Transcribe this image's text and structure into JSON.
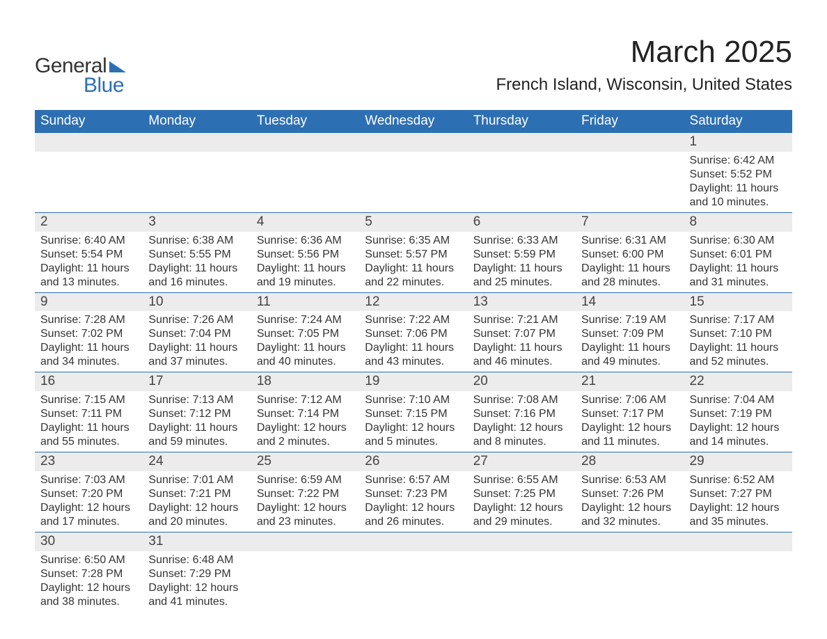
{
  "logo": {
    "text_general": "General",
    "text_blue": "Blue",
    "triangle_color": "#2d6fb3"
  },
  "title": "March 2025",
  "location": "French Island, Wisconsin, United States",
  "colors": {
    "header_bg": "#2d6fb3",
    "header_text": "#ffffff",
    "daynum_bg": "#ececec",
    "text": "#333333",
    "row_border": "#2d6fb3",
    "page_bg": "#ffffff"
  },
  "day_headers": [
    "Sunday",
    "Monday",
    "Tuesday",
    "Wednesday",
    "Thursday",
    "Friday",
    "Saturday"
  ],
  "weeks": [
    [
      null,
      null,
      null,
      null,
      null,
      null,
      {
        "n": "1",
        "sunrise": "6:42 AM",
        "sunset": "5:52 PM",
        "daylight": "11 hours and 10 minutes."
      }
    ],
    [
      {
        "n": "2",
        "sunrise": "6:40 AM",
        "sunset": "5:54 PM",
        "daylight": "11 hours and 13 minutes."
      },
      {
        "n": "3",
        "sunrise": "6:38 AM",
        "sunset": "5:55 PM",
        "daylight": "11 hours and 16 minutes."
      },
      {
        "n": "4",
        "sunrise": "6:36 AM",
        "sunset": "5:56 PM",
        "daylight": "11 hours and 19 minutes."
      },
      {
        "n": "5",
        "sunrise": "6:35 AM",
        "sunset": "5:57 PM",
        "daylight": "11 hours and 22 minutes."
      },
      {
        "n": "6",
        "sunrise": "6:33 AM",
        "sunset": "5:59 PM",
        "daylight": "11 hours and 25 minutes."
      },
      {
        "n": "7",
        "sunrise": "6:31 AM",
        "sunset": "6:00 PM",
        "daylight": "11 hours and 28 minutes."
      },
      {
        "n": "8",
        "sunrise": "6:30 AM",
        "sunset": "6:01 PM",
        "daylight": "11 hours and 31 minutes."
      }
    ],
    [
      {
        "n": "9",
        "sunrise": "7:28 AM",
        "sunset": "7:02 PM",
        "daylight": "11 hours and 34 minutes."
      },
      {
        "n": "10",
        "sunrise": "7:26 AM",
        "sunset": "7:04 PM",
        "daylight": "11 hours and 37 minutes."
      },
      {
        "n": "11",
        "sunrise": "7:24 AM",
        "sunset": "7:05 PM",
        "daylight": "11 hours and 40 minutes."
      },
      {
        "n": "12",
        "sunrise": "7:22 AM",
        "sunset": "7:06 PM",
        "daylight": "11 hours and 43 minutes."
      },
      {
        "n": "13",
        "sunrise": "7:21 AM",
        "sunset": "7:07 PM",
        "daylight": "11 hours and 46 minutes."
      },
      {
        "n": "14",
        "sunrise": "7:19 AM",
        "sunset": "7:09 PM",
        "daylight": "11 hours and 49 minutes."
      },
      {
        "n": "15",
        "sunrise": "7:17 AM",
        "sunset": "7:10 PM",
        "daylight": "11 hours and 52 minutes."
      }
    ],
    [
      {
        "n": "16",
        "sunrise": "7:15 AM",
        "sunset": "7:11 PM",
        "daylight": "11 hours and 55 minutes."
      },
      {
        "n": "17",
        "sunrise": "7:13 AM",
        "sunset": "7:12 PM",
        "daylight": "11 hours and 59 minutes."
      },
      {
        "n": "18",
        "sunrise": "7:12 AM",
        "sunset": "7:14 PM",
        "daylight": "12 hours and 2 minutes."
      },
      {
        "n": "19",
        "sunrise": "7:10 AM",
        "sunset": "7:15 PM",
        "daylight": "12 hours and 5 minutes."
      },
      {
        "n": "20",
        "sunrise": "7:08 AM",
        "sunset": "7:16 PM",
        "daylight": "12 hours and 8 minutes."
      },
      {
        "n": "21",
        "sunrise": "7:06 AM",
        "sunset": "7:17 PM",
        "daylight": "12 hours and 11 minutes."
      },
      {
        "n": "22",
        "sunrise": "7:04 AM",
        "sunset": "7:19 PM",
        "daylight": "12 hours and 14 minutes."
      }
    ],
    [
      {
        "n": "23",
        "sunrise": "7:03 AM",
        "sunset": "7:20 PM",
        "daylight": "12 hours and 17 minutes."
      },
      {
        "n": "24",
        "sunrise": "7:01 AM",
        "sunset": "7:21 PM",
        "daylight": "12 hours and 20 minutes."
      },
      {
        "n": "25",
        "sunrise": "6:59 AM",
        "sunset": "7:22 PM",
        "daylight": "12 hours and 23 minutes."
      },
      {
        "n": "26",
        "sunrise": "6:57 AM",
        "sunset": "7:23 PM",
        "daylight": "12 hours and 26 minutes."
      },
      {
        "n": "27",
        "sunrise": "6:55 AM",
        "sunset": "7:25 PM",
        "daylight": "12 hours and 29 minutes."
      },
      {
        "n": "28",
        "sunrise": "6:53 AM",
        "sunset": "7:26 PM",
        "daylight": "12 hours and 32 minutes."
      },
      {
        "n": "29",
        "sunrise": "6:52 AM",
        "sunset": "7:27 PM",
        "daylight": "12 hours and 35 minutes."
      }
    ],
    [
      {
        "n": "30",
        "sunrise": "6:50 AM",
        "sunset": "7:28 PM",
        "daylight": "12 hours and 38 minutes."
      },
      {
        "n": "31",
        "sunrise": "6:48 AM",
        "sunset": "7:29 PM",
        "daylight": "12 hours and 41 minutes."
      },
      null,
      null,
      null,
      null,
      null
    ]
  ],
  "labels": {
    "sunrise": "Sunrise: ",
    "sunset": "Sunset: ",
    "daylight": "Daylight: "
  }
}
